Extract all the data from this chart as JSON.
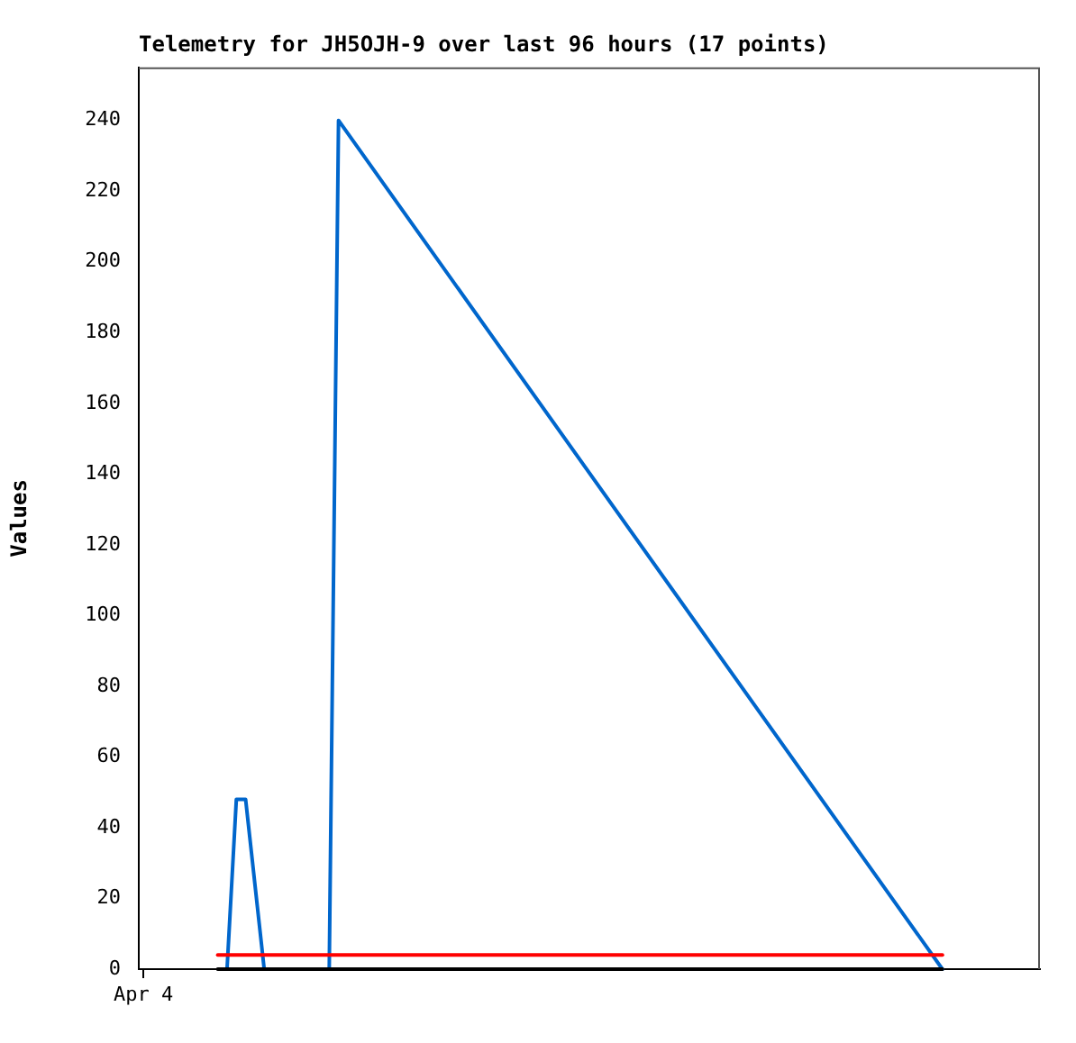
{
  "chart_data": {
    "type": "line",
    "title": "Telemetry for JH5OJH-9 over last 96 hours (17 points)",
    "ylabel": "Values",
    "categories": [
      "Apr 4",
      null,
      null,
      null,
      null,
      null,
      null,
      null,
      null,
      null,
      null,
      null,
      null,
      null,
      null,
      null,
      null,
      null,
      null,
      null,
      null,
      null,
      null,
      null,
      null,
      null,
      null,
      null,
      null,
      null,
      null,
      null,
      null,
      null,
      null,
      null,
      null,
      null,
      null,
      null,
      null,
      null,
      null,
      null,
      null,
      null,
      null,
      null,
      null,
      null,
      null,
      null,
      null,
      null,
      null,
      null,
      null,
      null,
      null,
      null,
      null,
      null,
      null,
      null,
      null,
      null,
      null,
      null,
      null,
      null,
      null,
      null,
      null,
      null,
      null,
      null,
      null,
      null,
      null,
      null,
      null,
      null,
      null,
      null,
      null,
      null,
      null,
      null,
      null,
      null,
      null,
      null,
      null,
      null,
      null,
      null,
      null
    ],
    "ylim": [
      0,
      255
    ],
    "yticks": [
      0,
      20,
      40,
      60,
      80,
      100,
      120,
      140,
      160,
      180,
      200,
      220,
      240
    ],
    "marker": "none",
    "line_style": "solid",
    "series": [
      {
        "color": "#000000",
        "values": [
          null,
          null,
          null,
          null,
          null,
          null,
          null,
          null,
          0,
          null,
          null,
          null,
          null,
          null,
          null,
          null,
          null,
          null,
          null,
          null,
          null,
          null,
          null,
          null,
          null,
          null,
          null,
          null,
          null,
          null,
          null,
          null,
          null,
          null,
          null,
          null,
          null,
          null,
          null,
          null,
          null,
          null,
          null,
          null,
          null,
          null,
          null,
          null,
          null,
          null,
          null,
          null,
          null,
          null,
          null,
          null,
          null,
          null,
          null,
          null,
          null,
          null,
          null,
          null,
          null,
          null,
          null,
          null,
          null,
          null,
          null,
          null,
          null,
          null,
          null,
          null,
          null,
          null,
          null,
          null,
          null,
          null,
          null,
          null,
          null,
          null,
          0,
          null,
          null,
          null,
          null,
          null,
          null,
          null,
          null,
          null,
          null
        ]
      },
      {
        "color": "#ff0000",
        "values": [
          null,
          null,
          null,
          null,
          null,
          null,
          null,
          null,
          4,
          null,
          null,
          null,
          null,
          null,
          null,
          null,
          null,
          null,
          null,
          null,
          null,
          null,
          null,
          null,
          null,
          null,
          null,
          null,
          null,
          null,
          null,
          null,
          null,
          null,
          null,
          null,
          null,
          null,
          null,
          null,
          null,
          null,
          null,
          null,
          null,
          null,
          null,
          null,
          null,
          null,
          null,
          null,
          null,
          null,
          null,
          null,
          null,
          null,
          null,
          null,
          null,
          null,
          null,
          null,
          null,
          null,
          null,
          null,
          null,
          null,
          null,
          null,
          null,
          null,
          null,
          null,
          null,
          null,
          null,
          null,
          null,
          null,
          null,
          null,
          null,
          null,
          4,
          null,
          null,
          null,
          null,
          null,
          null,
          null,
          null,
          null,
          null
        ]
      },
      {
        "color": "#0066cc",
        "values": [
          null,
          null,
          null,
          null,
          null,
          null,
          null,
          null,
          null,
          0,
          48,
          48,
          null,
          0,
          null,
          null,
          null,
          null,
          null,
          null,
          0,
          240,
          null,
          null,
          null,
          null,
          null,
          null,
          null,
          null,
          null,
          null,
          null,
          null,
          null,
          null,
          null,
          null,
          null,
          null,
          null,
          null,
          null,
          null,
          null,
          null,
          null,
          null,
          null,
          null,
          null,
          null,
          null,
          null,
          null,
          null,
          null,
          null,
          null,
          null,
          null,
          null,
          null,
          null,
          null,
          null,
          null,
          null,
          null,
          null,
          null,
          null,
          null,
          null,
          null,
          null,
          null,
          null,
          null,
          null,
          null,
          null,
          null,
          null,
          null,
          null,
          0,
          null,
          null,
          null,
          null,
          null,
          null,
          null,
          null,
          null,
          null
        ]
      }
    ]
  }
}
